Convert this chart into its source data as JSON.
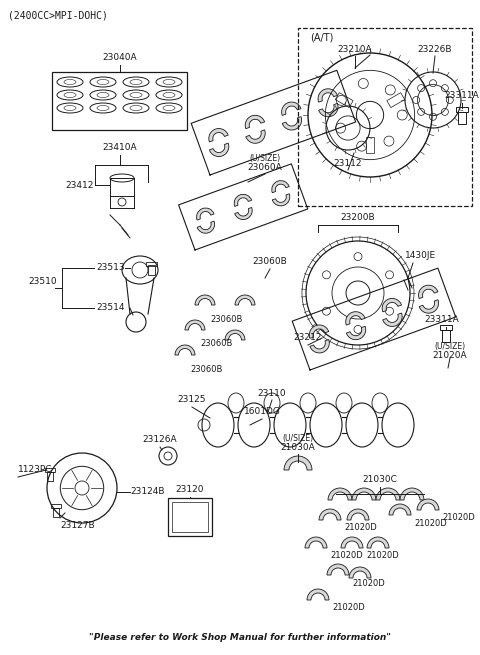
{
  "bg_color": "#ffffff",
  "line_color": "#1a1a1a",
  "text_color": "#1a1a1a",
  "title": "(2400CC>MPI-DOHC)",
  "footer": "\"Please refer to Work Shop Manual for further information\"",
  "figsize": [
    4.8,
    6.55
  ],
  "dpi": 100,
  "xlim": [
    0,
    480
  ],
  "ylim": [
    0,
    655
  ]
}
